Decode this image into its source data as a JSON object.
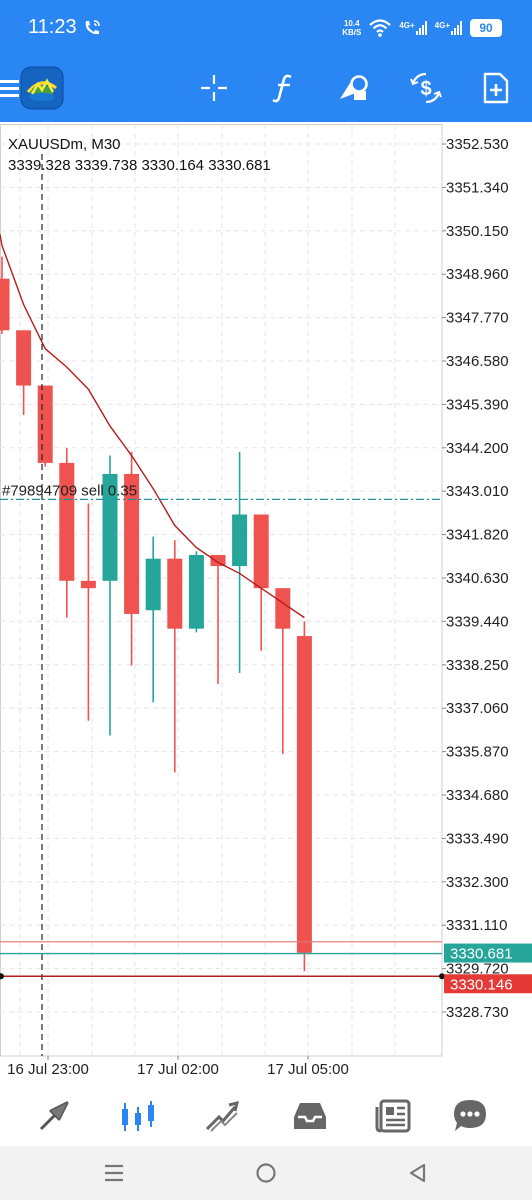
{
  "status_bar": {
    "time": "11:23",
    "net_speed_value": "10.4",
    "net_speed_unit": "KB/S",
    "signal1": "4G+",
    "signal2": "4G+",
    "battery": "90"
  },
  "toolbar": {
    "icons": [
      "menu-icon",
      "mt5-logo-icon",
      "crosshair-icon",
      "function-icon",
      "objects-icon",
      "dollar-sync-icon",
      "new-order-icon"
    ]
  },
  "chart": {
    "symbol_label": "XAUUSDm, M30",
    "ohlc_label": "3339.328 3339.738 3330.164 3330.681",
    "order_label": "#79894709 sell 0.35",
    "price_ticks": [
      "3352.530",
      "3351.340",
      "3350.150",
      "3348.960",
      "3347.770",
      "3346.580",
      "3345.390",
      "3344.200",
      "3343.010",
      "3341.820",
      "3340.630",
      "3339.440",
      "3338.250",
      "3337.060",
      "3335.870",
      "3334.680",
      "3333.490",
      "3332.300",
      "3331.110",
      "3329.720",
      "3328.730"
    ],
    "time_ticks": [
      "16 Jul 23:00",
      "17 Jul 02:00",
      "17 Jul 05:00"
    ],
    "bid_label": "3330.681",
    "ask_label": "3330.146",
    "colors": {
      "bull": "#26a69a",
      "bear": "#ef5350",
      "ma": "#b71c1c",
      "grid": "#e6e6e6",
      "order_line": "#2196a0",
      "bid_bg": "#26a69a",
      "ask_bg": "#e53935"
    }
  },
  "chart_data": {
    "type": "candlestick",
    "title": "XAUUSDm, M30",
    "xlabel": "",
    "ylabel": "",
    "ylim": [
      3327.9,
      3353.2
    ],
    "x_ticks": [
      "16 Jul 23:00",
      "17 Jul 02:00",
      "17 Jul 05:00"
    ],
    "candles": [
      {
        "o": 3349.0,
        "h": 3349.6,
        "l": 3347.5,
        "c": 3347.6
      },
      {
        "o": 3347.6,
        "h": 3347.6,
        "l": 3345.3,
        "c": 3346.1
      },
      {
        "o": 3346.1,
        "h": 3346.1,
        "l": 3343.9,
        "c": 3344.0
      },
      {
        "o": 3344.0,
        "h": 3344.4,
        "l": 3339.8,
        "c": 3340.8
      },
      {
        "o": 3340.8,
        "h": 3342.9,
        "l": 3337.0,
        "c": 3340.6
      },
      {
        "o": 3340.8,
        "h": 3344.2,
        "l": 3336.6,
        "c": 3343.7
      },
      {
        "o": 3343.7,
        "h": 3344.3,
        "l": 3338.5,
        "c": 3339.9
      },
      {
        "o": 3340.0,
        "h": 3342.0,
        "l": 3337.5,
        "c": 3341.4
      },
      {
        "o": 3341.4,
        "h": 3341.9,
        "l": 3335.6,
        "c": 3339.5
      },
      {
        "o": 3339.5,
        "h": 3341.6,
        "l": 3339.4,
        "c": 3341.5
      },
      {
        "o": 3341.5,
        "h": 3341.5,
        "l": 3338.0,
        "c": 3341.2
      },
      {
        "o": 3341.2,
        "h": 3344.3,
        "l": 3338.3,
        "c": 3342.6
      },
      {
        "o": 3342.6,
        "h": 3342.6,
        "l": 3338.9,
        "c": 3340.6
      },
      {
        "o": 3340.6,
        "h": 3340.6,
        "l": 3336.1,
        "c": 3339.5
      },
      {
        "o": 3339.3,
        "h": 3339.7,
        "l": 3330.2,
        "c": 3330.7
      }
    ],
    "ma_series": [
      3349.9,
      3348.3,
      3347.1,
      3346.6,
      3346.0,
      3345.0,
      3344.2,
      3343.3,
      3342.3,
      3341.7,
      3341.3,
      3341.0,
      3340.6,
      3340.2,
      3339.8
    ],
    "levels": {
      "order": 3343.01,
      "bid": 3330.681,
      "ask": 3330.146,
      "line_a": 3331.0
    }
  },
  "bottom_nav": {
    "items": [
      {
        "icon": "quotes-icon",
        "active": false
      },
      {
        "icon": "chart-icon",
        "active": true
      },
      {
        "icon": "trade-icon",
        "active": false
      },
      {
        "icon": "history-icon",
        "active": false
      },
      {
        "icon": "news-icon",
        "active": false
      },
      {
        "icon": "messages-icon",
        "active": false
      }
    ]
  },
  "system_nav": {
    "icons": [
      "recents-icon",
      "home-icon",
      "back-icon"
    ]
  }
}
